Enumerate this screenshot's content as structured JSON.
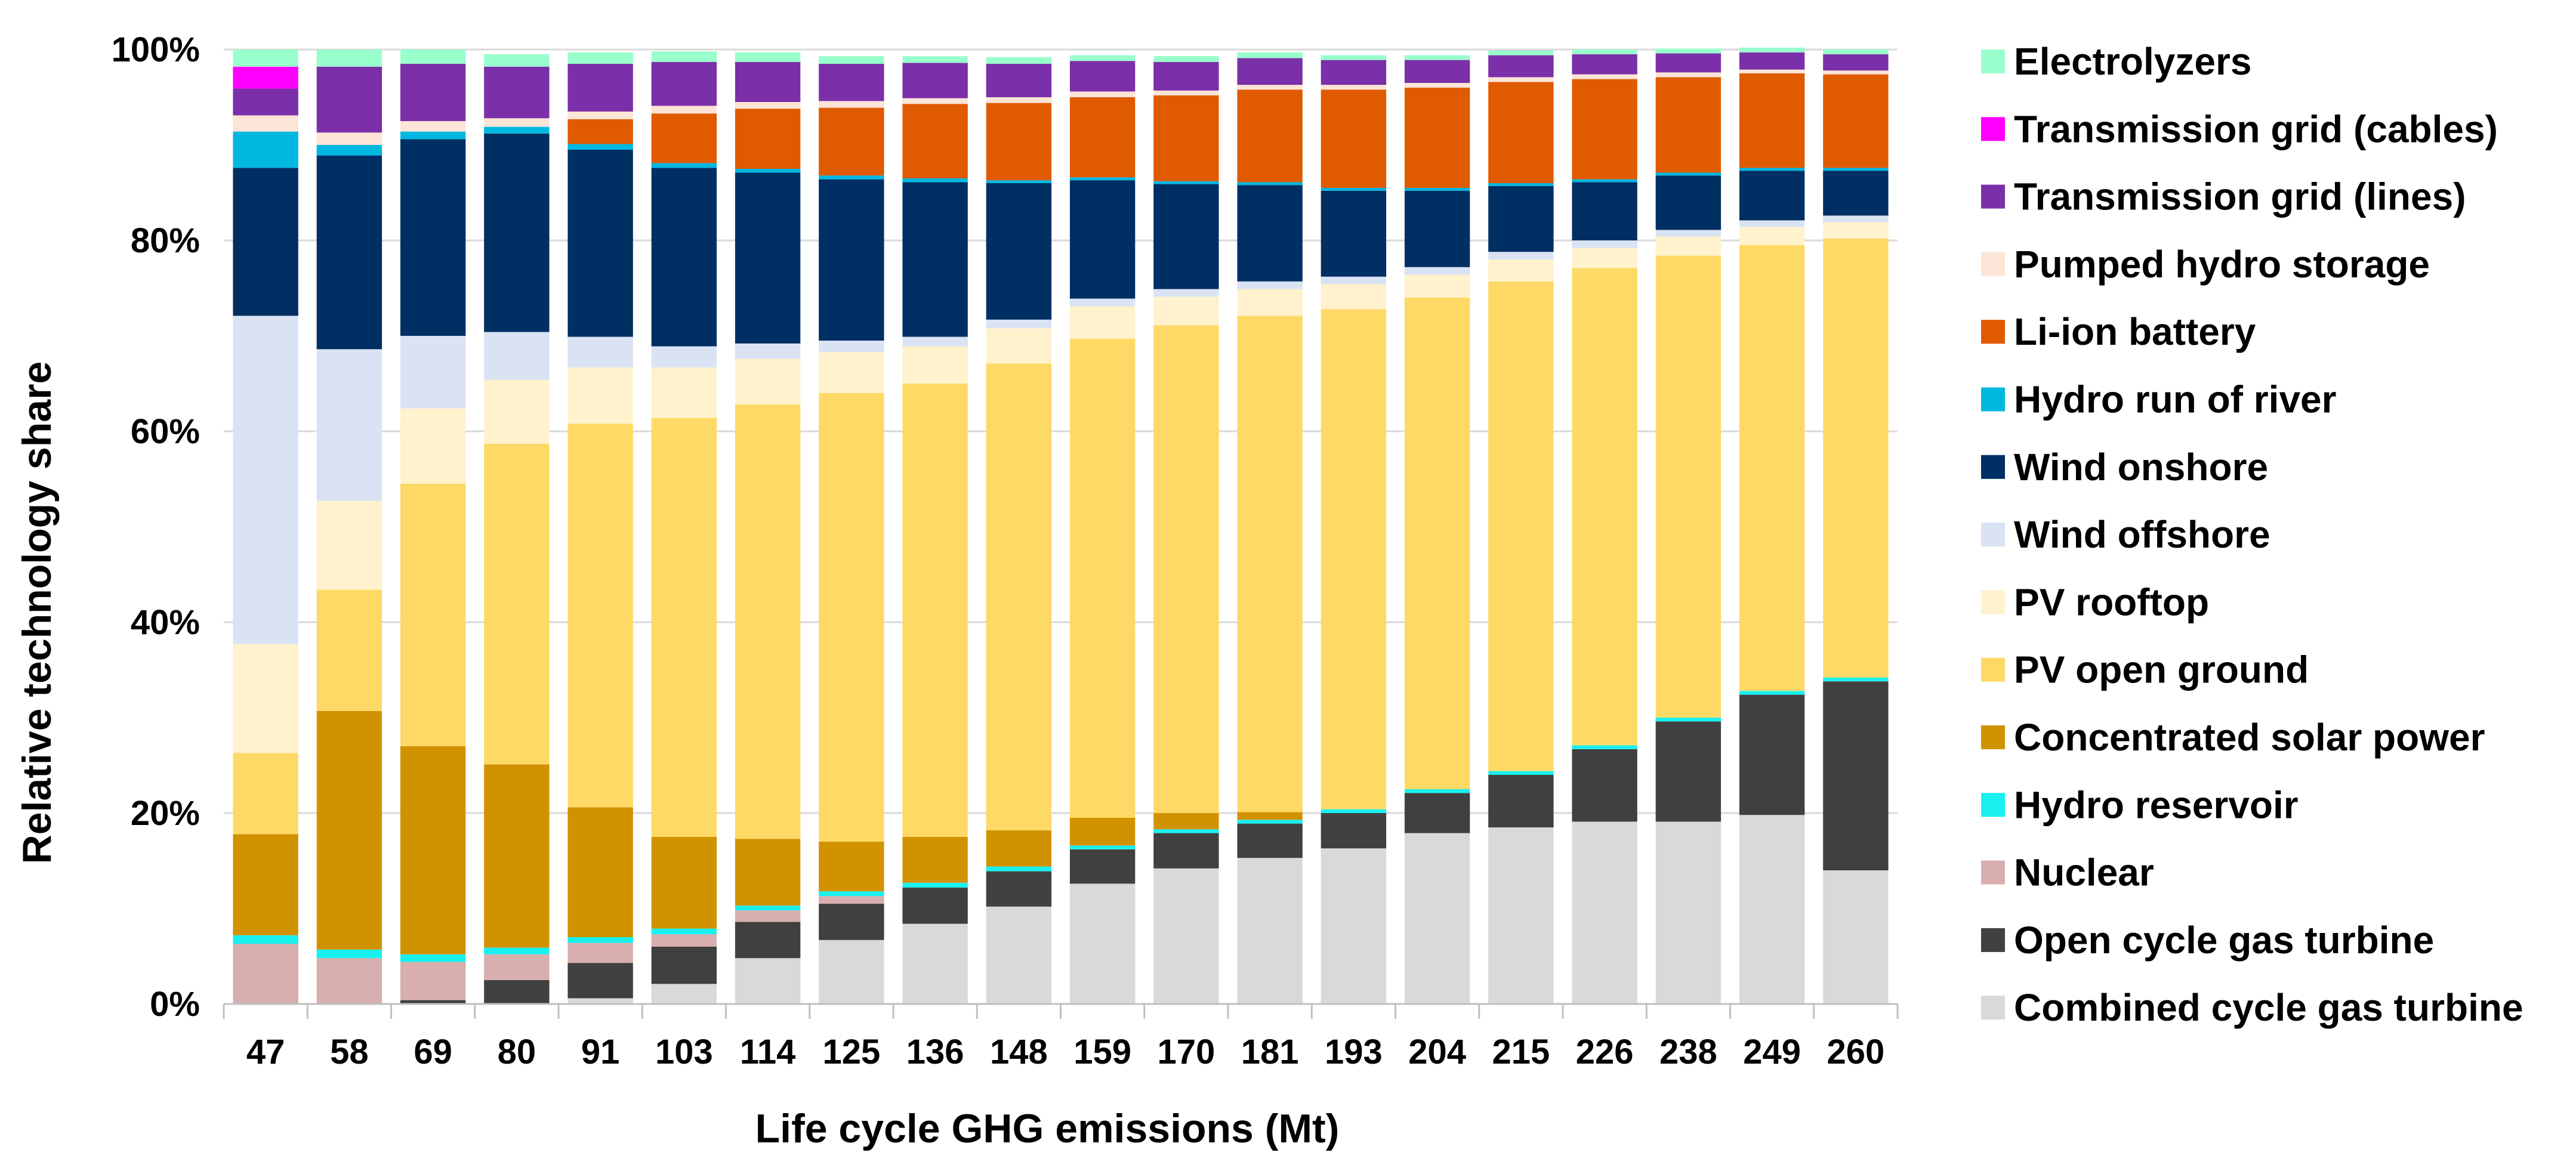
{
  "chart_data": {
    "type": "stacked-bar",
    "title": "",
    "xlabel": "Life cycle GHG emissions (Mt)",
    "ylabel": "Relative technology share",
    "ylim": [
      0,
      100
    ],
    "yticks": [
      "0%",
      "20%",
      "40%",
      "60%",
      "80%",
      "100%"
    ],
    "grid": true,
    "legend_position": "right",
    "categories": [
      "47",
      "58",
      "69",
      "80",
      "91",
      "103",
      "114",
      "125",
      "136",
      "148",
      "159",
      "170",
      "181",
      "193",
      "204",
      "215",
      "226",
      "238",
      "249",
      "260"
    ],
    "series": [
      {
        "name": "Combined cycle gas turbine",
        "color": "#d9d9d9",
        "values": [
          0,
          0,
          0,
          0,
          0.6,
          2.1,
          4.8,
          6.7,
          8.4,
          10.2,
          12.6,
          14.2,
          15.3,
          16.3,
          17.9,
          18.5,
          19.1,
          19.1,
          19.8,
          14.0
        ]
      },
      {
        "name": "Open cycle gas turbine",
        "color": "#404040",
        "values": [
          0,
          0,
          0.4,
          2.5,
          3.7,
          3.9,
          3.8,
          3.8,
          3.8,
          3.7,
          3.6,
          3.7,
          3.6,
          3.7,
          4.2,
          5.5,
          7.6,
          10.5,
          12.6,
          19.8
        ]
      },
      {
        "name": "Nuclear",
        "color": "#d9aeae",
        "values": [
          6.3,
          4.8,
          4.0,
          2.7,
          2.1,
          1.3,
          1.2,
          0.8,
          0,
          0,
          0,
          0,
          0,
          0,
          0,
          0,
          0,
          0,
          0,
          0
        ]
      },
      {
        "name": "Hydro reservoir",
        "color": "#19f0f0",
        "values": [
          0.9,
          0.9,
          0.8,
          0.7,
          0.6,
          0.6,
          0.5,
          0.5,
          0.5,
          0.5,
          0.4,
          0.4,
          0.4,
          0.4,
          0.4,
          0.4,
          0.4,
          0.4,
          0.4,
          0.4
        ]
      },
      {
        "name": "Concentrated solar power",
        "color": "#d19200",
        "values": [
          10.6,
          25.0,
          21.8,
          19.2,
          13.6,
          9.6,
          7.0,
          5.2,
          4.8,
          3.8,
          2.9,
          1.7,
          0.8,
          0,
          0,
          0,
          0,
          0,
          0,
          0
        ]
      },
      {
        "name": "PV open ground",
        "color": "#ffd966",
        "values": [
          8.5,
          12.7,
          27.5,
          33.6,
          40.2,
          43.9,
          45.5,
          47.0,
          47.5,
          48.9,
          50.2,
          51.1,
          52.0,
          52.4,
          51.5,
          51.3,
          50.0,
          48.4,
          46.7,
          46.0
        ]
      },
      {
        "name": "PV rooftop",
        "color": "#fff2cc",
        "values": [
          11.4,
          9.3,
          7.9,
          6.7,
          5.9,
          5.3,
          4.8,
          4.3,
          3.9,
          3.7,
          3.4,
          3.0,
          2.8,
          2.6,
          2.4,
          2.3,
          2.1,
          2.0,
          1.9,
          1.7
        ]
      },
      {
        "name": "Wind offshore",
        "color": "#dae3f3",
        "values": [
          34.4,
          15.9,
          7.6,
          5.0,
          3.2,
          2.2,
          1.6,
          1.2,
          1.0,
          0.9,
          0.8,
          0.8,
          0.8,
          0.8,
          0.8,
          0.8,
          0.8,
          0.7,
          0.7,
          0.7
        ]
      },
      {
        "name": "Wind onshore",
        "color": "#002f63",
        "values": [
          15.5,
          20.3,
          20.6,
          20.8,
          19.6,
          18.7,
          17.9,
          16.9,
          16.2,
          14.3,
          12.4,
          11.0,
          10.1,
          9.0,
          8.0,
          6.9,
          6.1,
          5.7,
          5.2,
          4.7
        ]
      },
      {
        "name": "Hydro run of river",
        "color": "#00b7e0",
        "values": [
          3.8,
          1.1,
          0.8,
          0.7,
          0.6,
          0.5,
          0.4,
          0.4,
          0.4,
          0.3,
          0.3,
          0.3,
          0.3,
          0.3,
          0.3,
          0.3,
          0.3,
          0.3,
          0.3,
          0.3
        ]
      },
      {
        "name": "Li-ion battery",
        "color": "#e05a00",
        "values": [
          0,
          0,
          0,
          0,
          2.6,
          5.2,
          6.3,
          7.1,
          7.8,
          8.1,
          8.4,
          9.0,
          9.7,
          10.3,
          10.5,
          10.6,
          10.5,
          10.0,
          9.9,
          9.8
        ]
      },
      {
        "name": "Pumped hydro storage",
        "color": "#fce4d6",
        "values": [
          1.7,
          1.3,
          1.1,
          0.9,
          0.8,
          0.8,
          0.7,
          0.7,
          0.6,
          0.6,
          0.6,
          0.5,
          0.5,
          0.5,
          0.5,
          0.5,
          0.5,
          0.5,
          0.4,
          0.4
        ]
      },
      {
        "name": "Transmission grid (lines)",
        "color": "#7b2fa8",
        "values": [
          2.8,
          6.9,
          6.0,
          5.4,
          5.0,
          4.6,
          4.2,
          3.9,
          3.7,
          3.5,
          3.2,
          3.0,
          2.8,
          2.6,
          2.4,
          2.3,
          2.1,
          2.0,
          1.8,
          1.7
        ]
      },
      {
        "name": "Transmission grid (cables)",
        "color": "#ff00ff",
        "values": [
          2.3,
          0,
          0,
          0,
          0,
          0,
          0,
          0,
          0,
          0,
          0,
          0,
          0,
          0,
          0,
          0,
          0,
          0,
          0,
          0
        ]
      },
      {
        "name": "Electrolyzers",
        "color": "#99ffcc",
        "values": [
          1.8,
          1.8,
          1.5,
          1.3,
          1.2,
          1.1,
          1.0,
          0.8,
          0.7,
          0.7,
          0.6,
          0.6,
          0.6,
          0.5,
          0.5,
          0.5,
          0.5,
          0.5,
          0.5,
          0.5
        ]
      }
    ],
    "legend_order": [
      "Electrolyzers",
      "Transmission grid (cables)",
      "Transmission grid (lines)",
      "Pumped hydro storage",
      "Li-ion battery",
      "Hydro run of river",
      "Wind onshore",
      "Wind offshore",
      "PV rooftop",
      "PV open ground",
      "Concentrated solar power",
      "Hydro reservoir",
      "Nuclear",
      "Open cycle gas turbine",
      "Combined cycle gas turbine"
    ]
  }
}
